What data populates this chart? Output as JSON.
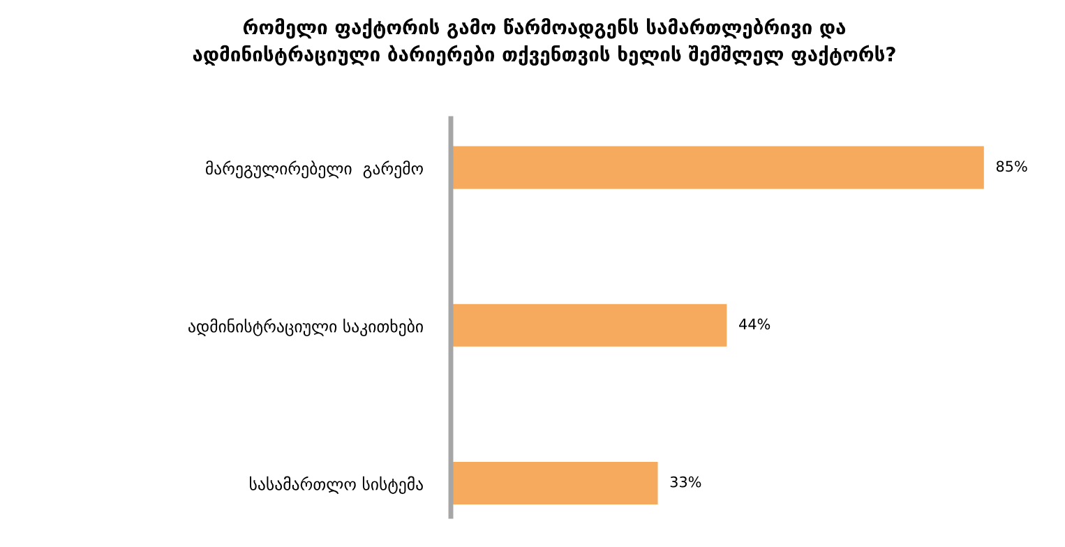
{
  "chart_data": {
    "type": "bar",
    "orientation": "horizontal",
    "title": "რომელი ფაქტორის გამო წარმოადგენს სამართლებრივი და\nადმინისტრაციული ბარიერები თქვენთვის ხელის შემშლელ ფაქტორს?",
    "categories": [
      "მარეგულირებელი  გარემო",
      "ადმინისტრაციული საკითხები",
      "სასამართლო სისტემა"
    ],
    "values": [
      85,
      44,
      33
    ],
    "color": "#f6aa5e",
    "value_labels": [
      "85%",
      "44%",
      "33%"
    ],
    "tick_labels": "y",
    "grid": false,
    "legend": false
  }
}
